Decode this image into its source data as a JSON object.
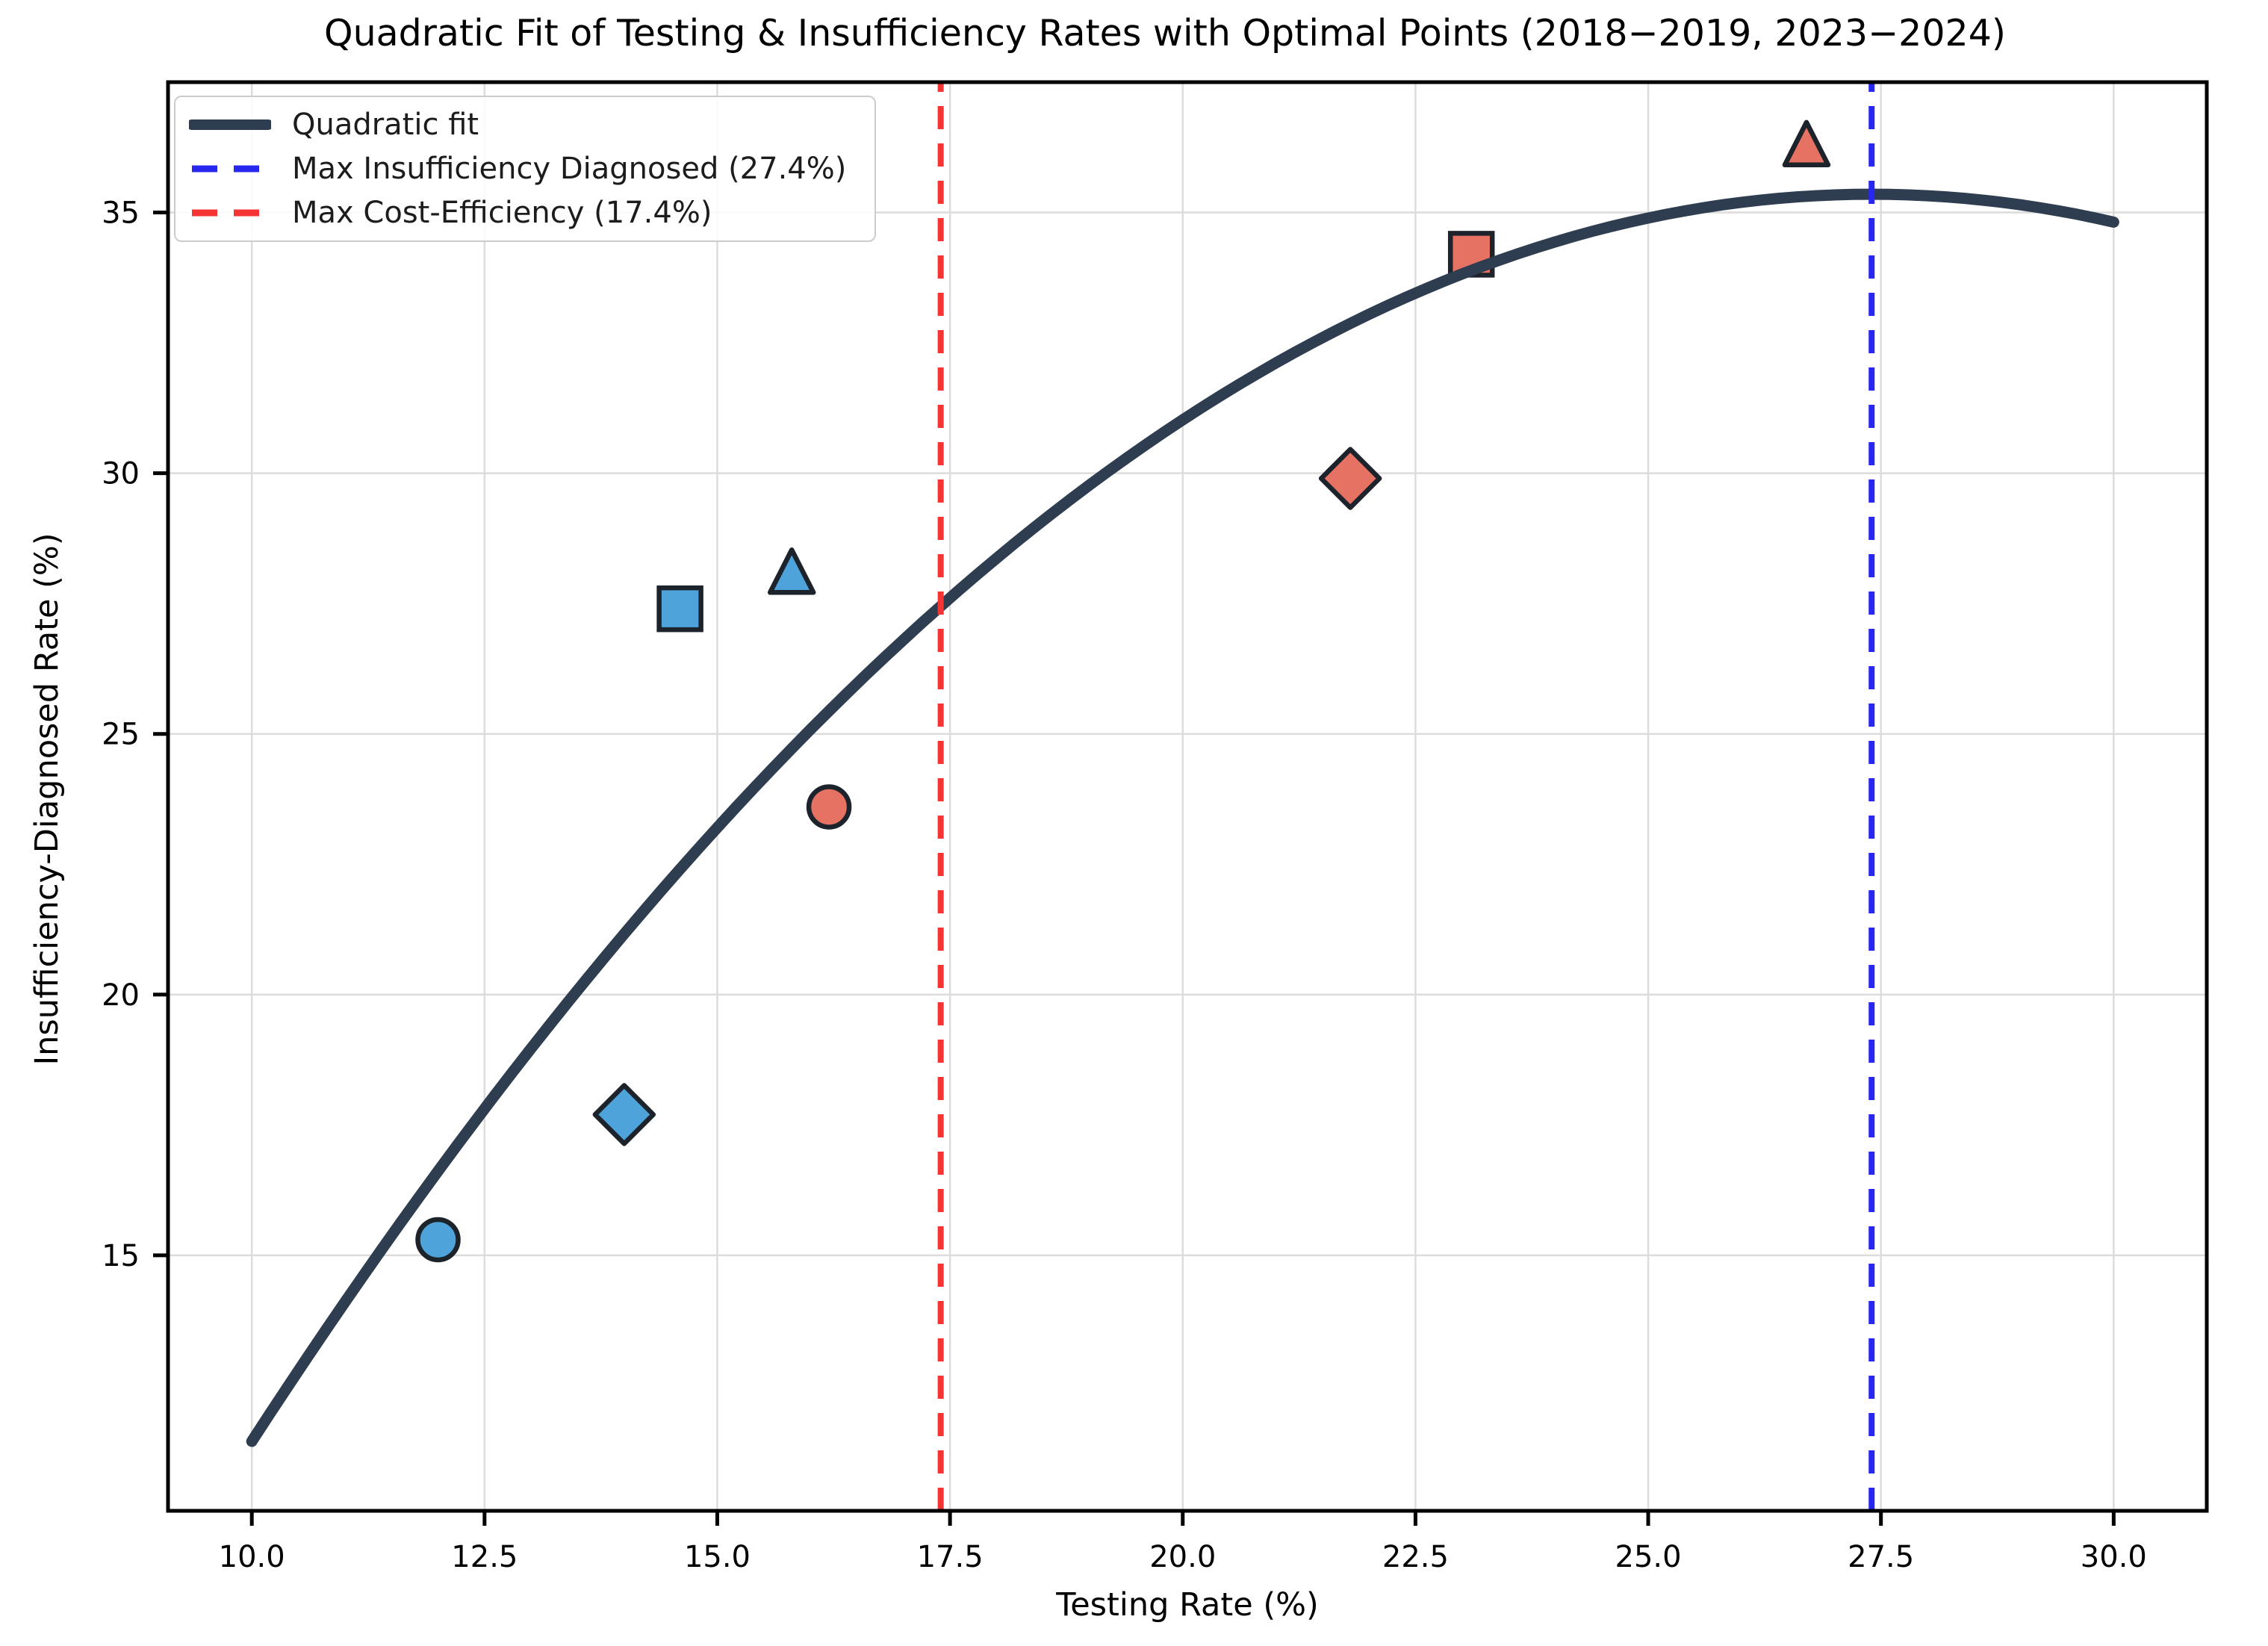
{
  "chart_data": {
    "type": "scatter",
    "title": "Quadratic Fit of Testing & Insufficiency Rates with Optimal Points (2018−2019, 2023−2024)",
    "xlabel": "Testing Rate (%)",
    "ylabel": "Insufficiency-Diagnosed Rate (%)",
    "xlim": [
      9.1,
      31.0
    ],
    "ylim": [
      10.1,
      37.5
    ],
    "grid": true,
    "x_ticks": [
      {
        "value": 10.0,
        "label": "10.0"
      },
      {
        "value": 12.5,
        "label": "12.5"
      },
      {
        "value": 15.0,
        "label": "15.0"
      },
      {
        "value": 17.5,
        "label": "17.5"
      },
      {
        "value": 20.0,
        "label": "20.0"
      },
      {
        "value": 22.5,
        "label": "22.5"
      },
      {
        "value": 25.0,
        "label": "25.0"
      },
      {
        "value": 27.5,
        "label": "27.5"
      },
      {
        "value": 30.0,
        "label": "30.0"
      }
    ],
    "y_ticks": [
      {
        "value": 15,
        "label": "15"
      },
      {
        "value": 20,
        "label": "20"
      },
      {
        "value": 25,
        "label": "25"
      },
      {
        "value": 30,
        "label": "30"
      },
      {
        "value": 35,
        "label": "35"
      }
    ],
    "fit_curve": {
      "label": "Quadratic fit",
      "color": "#2e3d50",
      "a": -0.079,
      "vertex_x": 27.4,
      "vertex_y": 35.35,
      "x_start": 10.0,
      "x_end": 30.0,
      "line_width": 15
    },
    "vlines": [
      {
        "name": "max-insufficiency-vline",
        "x": 27.4,
        "color": "#2727f0",
        "style": "dashed",
        "label": "Max Insufficiency Diagnosed (27.4%)"
      },
      {
        "name": "max-cost-efficiency-vline",
        "x": 17.4,
        "color": "#f53434",
        "style": "dashed",
        "label": "Max Cost-Efficiency (17.4%)"
      }
    ],
    "points": [
      {
        "x": 12.0,
        "y": 15.3,
        "shape": "circle",
        "group": "blue",
        "fill": "#4ea3da"
      },
      {
        "x": 14.0,
        "y": 17.7,
        "shape": "diamond",
        "group": "blue",
        "fill": "#4ea3da"
      },
      {
        "x": 14.6,
        "y": 27.4,
        "shape": "square",
        "group": "blue",
        "fill": "#4ea3da"
      },
      {
        "x": 15.8,
        "y": 28.1,
        "shape": "triangle",
        "group": "blue",
        "fill": "#4ea3da"
      },
      {
        "x": 16.2,
        "y": 23.6,
        "shape": "circle",
        "group": "red",
        "fill": "#e57262"
      },
      {
        "x": 21.8,
        "y": 29.9,
        "shape": "diamond",
        "group": "red",
        "fill": "#e57262"
      },
      {
        "x": 23.1,
        "y": 34.2,
        "shape": "square",
        "group": "red",
        "fill": "#e57262"
      },
      {
        "x": 26.7,
        "y": 36.3,
        "shape": "triangle",
        "group": "red",
        "fill": "#e57262"
      }
    ],
    "legend": {
      "position": "upper-left",
      "entries": [
        {
          "label": "Quadratic fit",
          "swatch": "thick-line",
          "color": "#2e3d50"
        },
        {
          "label": "Max Insufficiency Diagnosed (27.4%)",
          "swatch": "dashed-line",
          "color": "#2727f0"
        },
        {
          "label": "Max Cost-Efficiency (17.4%)",
          "swatch": "dashed-line",
          "color": "#f53434"
        }
      ]
    },
    "colors": {
      "marker_edge": "#1d232b",
      "blue_marker_fill": "#4ea3da",
      "red_marker_fill": "#e57262",
      "grid": "#dcdcdc",
      "spine": "#000000",
      "curve": "#2e3d50"
    }
  }
}
